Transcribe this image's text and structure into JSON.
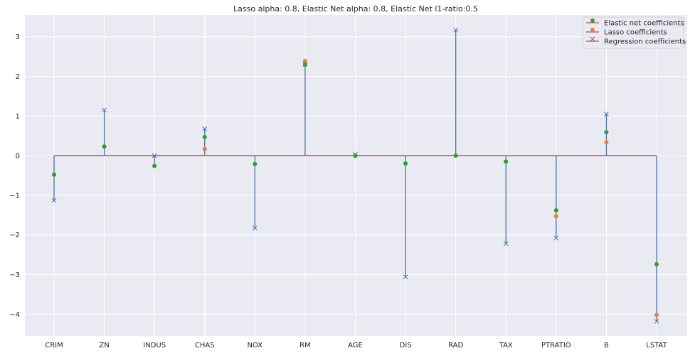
{
  "chart_data": {
    "type": "scatter",
    "title": "Lasso alpha: 0.8, Elastic Net alpha: 0.8, Elastic Net l1-ratio:0.5",
    "xlabel": "",
    "ylabel": "",
    "categories": [
      "CRIM",
      "ZN",
      "INDUS",
      "CHAS",
      "NOX",
      "RM",
      "AGE",
      "DIS",
      "RAD",
      "TAX",
      "PTRATIO",
      "B",
      "LSTAT"
    ],
    "ylim": [
      -4.55,
      3.55
    ],
    "yticks": [
      -4,
      -3,
      -2,
      -1,
      0,
      1,
      2,
      3
    ],
    "ytick_labels": [
      "−4",
      "−3",
      "−2",
      "−1",
      "0",
      "1",
      "2",
      "3"
    ],
    "grid": true,
    "legend_position": "top-right",
    "series": [
      {
        "name": "Elastic net coefficients",
        "marker": "dot",
        "color": "#2ca02c",
        "values": [
          -0.48,
          0.23,
          -0.26,
          0.47,
          -0.21,
          2.3,
          0.0,
          -0.2,
          0.0,
          -0.15,
          -1.38,
          0.59,
          -2.74
        ]
      },
      {
        "name": "Lasso coefficients",
        "marker": "dot",
        "color": "#f07f2d",
        "values": [
          -0.48,
          0.23,
          -0.26,
          0.17,
          -0.21,
          2.39,
          0.0,
          -0.2,
          0.0,
          -0.15,
          -1.53,
          0.34,
          -4.02
        ]
      },
      {
        "name": "Regression coefficients",
        "marker": "x",
        "color": "#4c72b0",
        "values": [
          -1.13,
          1.15,
          0.0,
          0.68,
          -1.83,
          2.3,
          0.03,
          -3.06,
          3.17,
          -2.22,
          -2.08,
          1.05,
          -4.18
        ]
      }
    ],
    "colors": {
      "background": "#eaeaf2",
      "grid": "#ffffff",
      "baseline": "#c44e52",
      "stem": "#4c72b0"
    }
  }
}
